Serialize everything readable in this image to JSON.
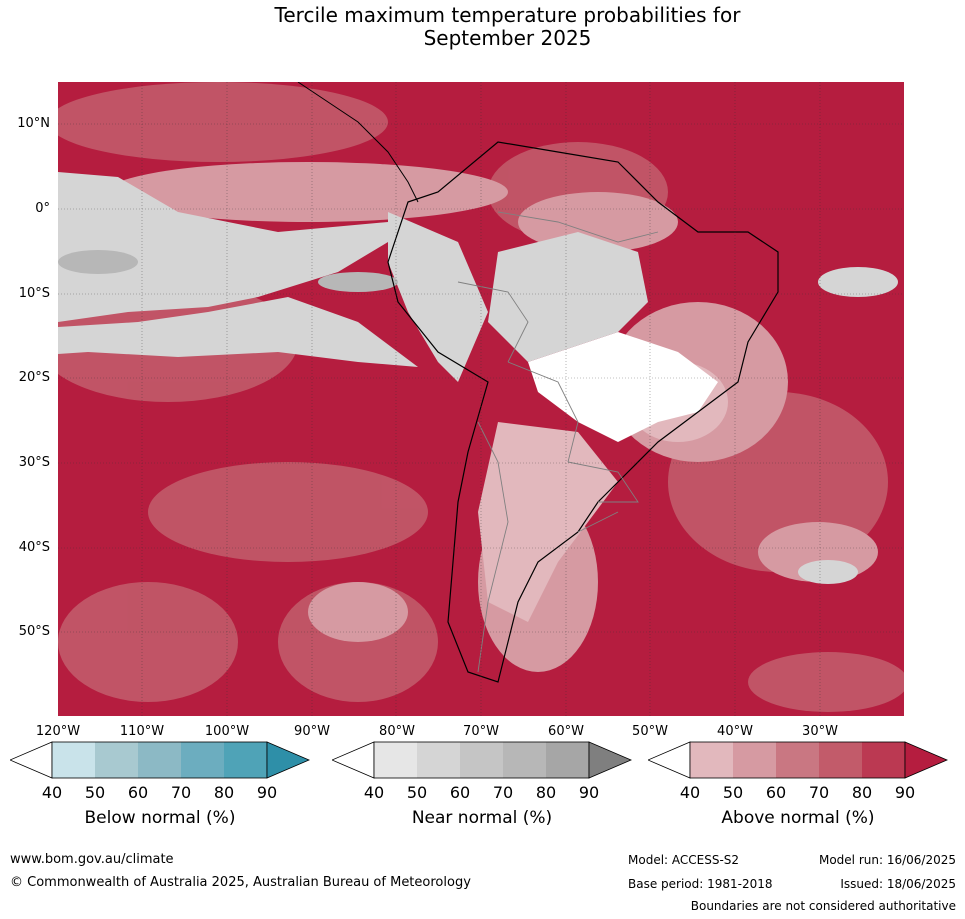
{
  "title_line1": "Tercile maximum temperature probabilities for",
  "title_line2": "September 2025",
  "map": {
    "lat_labels": [
      "10°N",
      "0°",
      "10°S",
      "20°S",
      "30°S",
      "40°S",
      "50°S"
    ],
    "lon_labels": [
      "120°W",
      "110°W",
      "100°W",
      "90°W",
      "80°W",
      "70°W",
      "60°W",
      "50°W",
      "40°W",
      "30°W"
    ],
    "base_color": "#b51d3f"
  },
  "colorbars": [
    {
      "title": "Below normal (%)",
      "ticks": [
        "40",
        "50",
        "60",
        "70",
        "80",
        "90"
      ],
      "colors": [
        "#ffffff",
        "#c9e3ea",
        "#a8c9d0",
        "#8cb9c5",
        "#6cadbf",
        "#4fa3b7",
        "#2e8fa8"
      ]
    },
    {
      "title": "Near normal (%)",
      "ticks": [
        "40",
        "50",
        "60",
        "70",
        "80",
        "90"
      ],
      "colors": [
        "#ffffff",
        "#e6e6e6",
        "#d5d5d5",
        "#c5c5c5",
        "#b7b7b7",
        "#a6a6a6",
        "#7f7f7f"
      ]
    },
    {
      "title": "Above normal (%)",
      "ticks": [
        "40",
        "50",
        "60",
        "70",
        "80",
        "90"
      ],
      "colors": [
        "#ffffff",
        "#e2b8bd",
        "#d69aa2",
        "#c97782",
        "#c25b6a",
        "#bb3952",
        "#b51d3f"
      ]
    }
  ],
  "footer": {
    "website": "www.bom.gov.au/climate",
    "copyright": "© Commonwealth of Australia 2025, Australian Bureau of Meteorology",
    "model": "Model: ACCESS-S2",
    "base_period": "Base period: 1981-2018",
    "model_run": "Model run: 16/06/2025",
    "issued": "Issued: 18/06/2025",
    "disclaimer": "Boundaries are not considered authoritative"
  }
}
